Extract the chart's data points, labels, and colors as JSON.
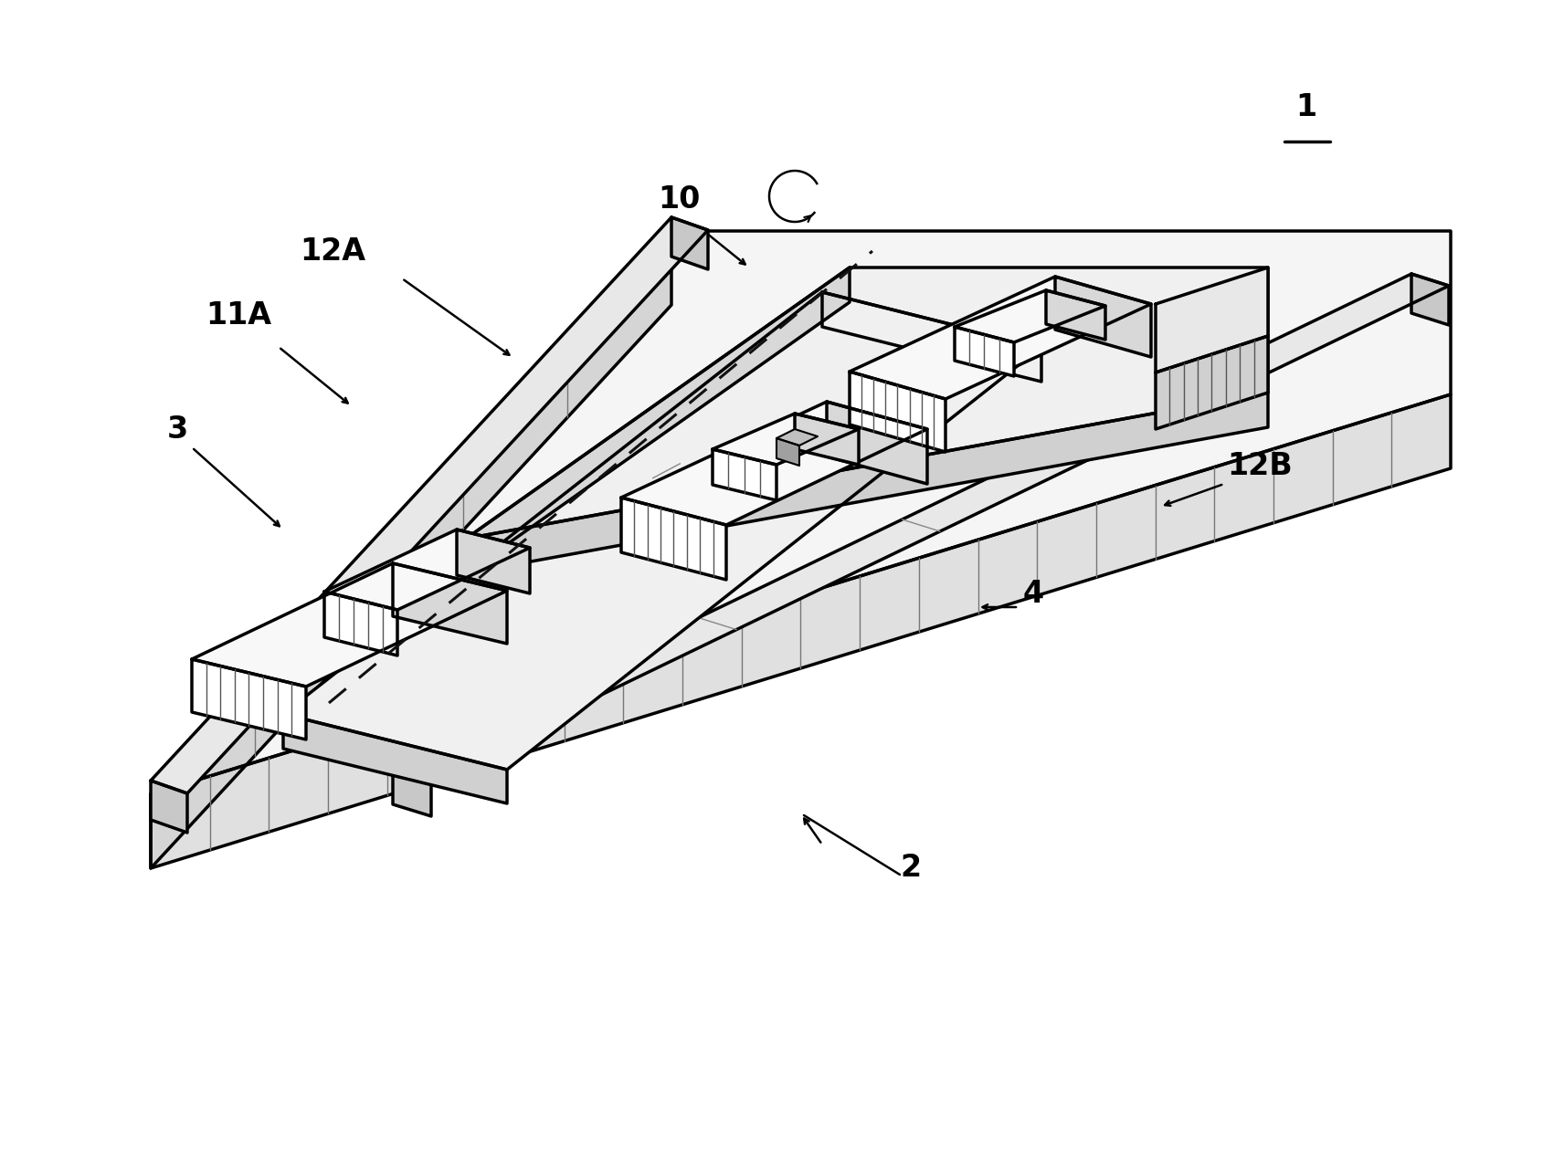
{
  "bg_color": "#ffffff",
  "lc": "#000000",
  "lw_main": 2.5,
  "lw_thin": 1.2,
  "label_1": "1",
  "label_2": "2",
  "label_3": "3",
  "label_4": "4",
  "label_10": "10",
  "label_11A": "11A",
  "label_12A": "12A",
  "label_12B": "12B",
  "fw": 17.0,
  "fh": 12.64
}
